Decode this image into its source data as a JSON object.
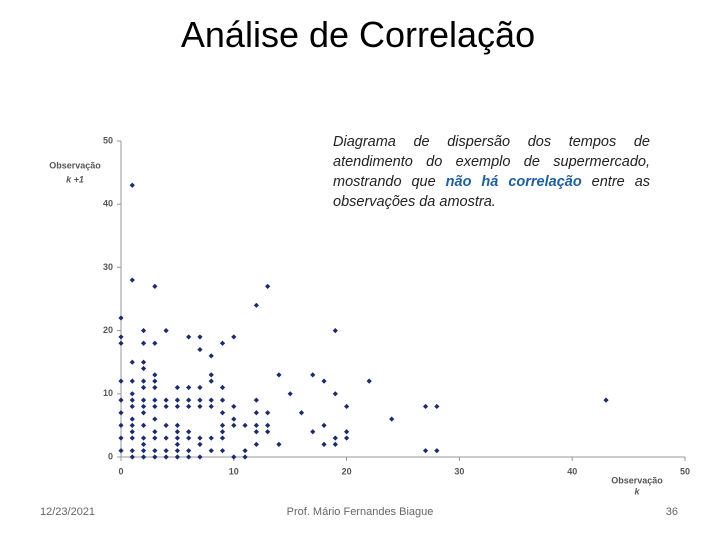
{
  "slide_title": "Análise de Correlação",
  "footer": {
    "date": "12/23/2021",
    "author": "Prof. Mário Fernandes Biague",
    "page": "36"
  },
  "chart_data": {
    "type": "scatter",
    "annotation": [
      "Diagrama de dispersão dos tempos de atendimento do exemplo de supermercado, mostrando que ",
      "não há correlação",
      " entre as observações da amostra."
    ],
    "ylabel": [
      "Observação",
      "k +1"
    ],
    "xlabel": [
      "Observação",
      "k"
    ],
    "color": "#1c2a6e",
    "xlim": [
      0,
      50
    ],
    "xticks": [
      0,
      10,
      20,
      30,
      40,
      50
    ],
    "ylim": [
      0,
      50
    ],
    "yticks": [
      0,
      10,
      20,
      30,
      40,
      50
    ],
    "x": [
      0,
      0,
      0,
      0,
      0,
      0,
      0,
      0,
      0,
      1,
      1,
      1,
      1,
      1,
      1,
      1,
      1,
      1,
      1,
      1,
      1,
      1,
      2,
      2,
      2,
      2,
      2,
      2,
      2,
      2,
      2,
      2,
      2,
      2,
      2,
      2,
      3,
      3,
      3,
      3,
      3,
      3,
      3,
      3,
      3,
      3,
      3,
      3,
      4,
      4,
      4,
      4,
      4,
      4,
      4,
      5,
      5,
      5,
      5,
      5,
      5,
      5,
      5,
      5,
      6,
      6,
      6,
      6,
      6,
      6,
      6,
      6,
      7,
      7,
      7,
      7,
      7,
      7,
      7,
      7,
      8,
      8,
      8,
      8,
      8,
      8,
      8,
      9,
      9,
      9,
      9,
      9,
      9,
      9,
      9,
      10,
      10,
      10,
      10,
      10,
      11,
      11,
      11,
      12,
      12,
      12,
      12,
      12,
      12,
      13,
      13,
      13,
      13,
      14,
      14,
      15,
      16,
      17,
      17,
      18,
      18,
      18,
      19,
      19,
      19,
      19,
      20,
      20,
      20,
      22,
      24,
      27,
      27,
      28,
      28,
      43
    ],
    "values": [
      22,
      19,
      18,
      12,
      9,
      7,
      5,
      3,
      1,
      43,
      28,
      15,
      12,
      10,
      9,
      8,
      6,
      5,
      4,
      3,
      1,
      0,
      20,
      18,
      15,
      14,
      12,
      11,
      9,
      8,
      7,
      5,
      3,
      2,
      1,
      0,
      27,
      18,
      13,
      12,
      11,
      9,
      8,
      6,
      4,
      3,
      1,
      0,
      20,
      9,
      8,
      5,
      3,
      1,
      0,
      11,
      9,
      8,
      5,
      4,
      3,
      2,
      1,
      0,
      19,
      11,
      9,
      8,
      4,
      3,
      1,
      0,
      19,
      17,
      11,
      9,
      8,
      3,
      2,
      0,
      16,
      13,
      12,
      9,
      8,
      3,
      1,
      18,
      11,
      9,
      7,
      5,
      4,
      3,
      1,
      19,
      8,
      6,
      5,
      0,
      5,
      1,
      0,
      24,
      9,
      7,
      5,
      4,
      2,
      27,
      7,
      5,
      4,
      13,
      2,
      10,
      7,
      13,
      4,
      12,
      5,
      2,
      20,
      10,
      3,
      2,
      8,
      4,
      3,
      12,
      6,
      8,
      1,
      8,
      1,
      9
    ]
  }
}
